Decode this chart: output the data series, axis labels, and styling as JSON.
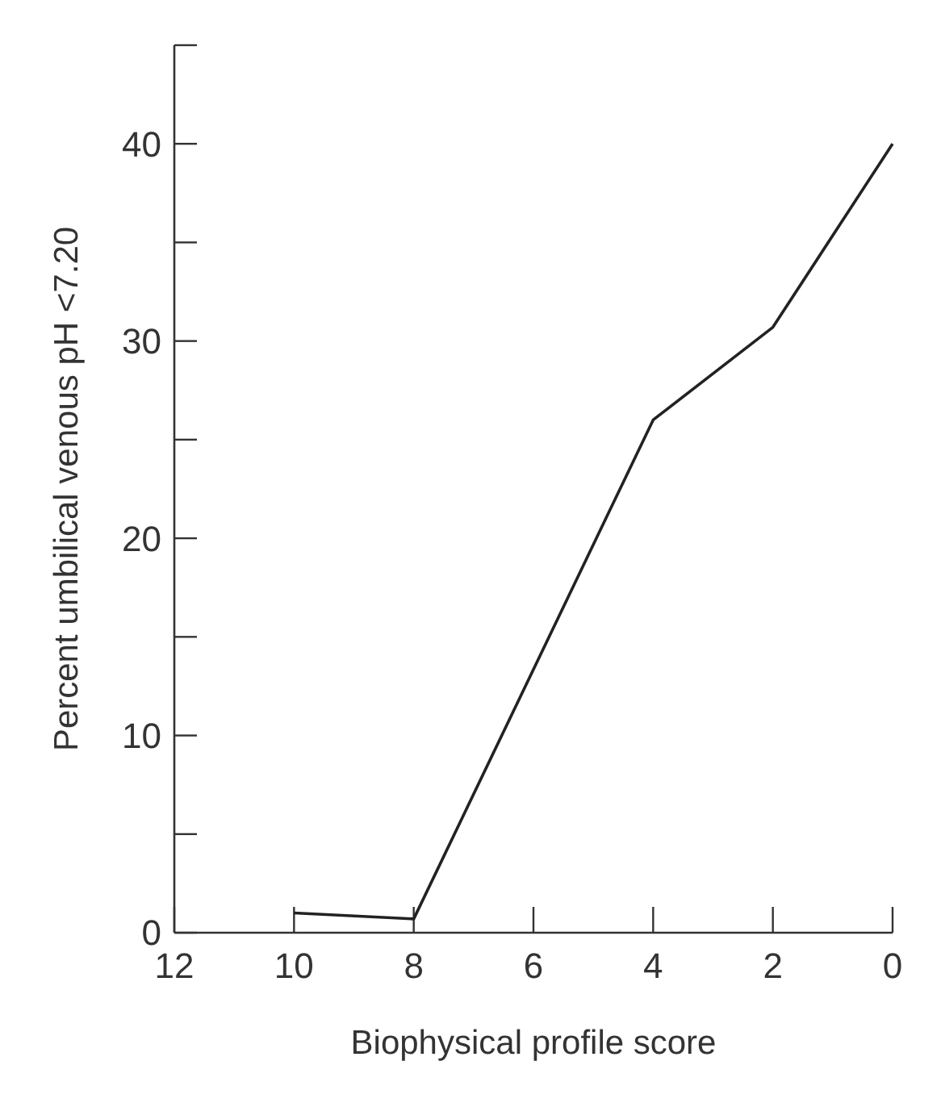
{
  "chart_data": {
    "type": "line",
    "xlabel": "Biophysical profile score",
    "ylabel": "Percent umbilical venous pH <7.20",
    "x": [
      10,
      8,
      4,
      2,
      0
    ],
    "series": [
      {
        "color": "#222222",
        "values": [
          1,
          0.7,
          26,
          30.7,
          40
        ]
      }
    ],
    "xlim": [
      12,
      0
    ],
    "xticks": [
      12,
      10,
      8,
      6,
      4,
      2,
      0
    ],
    "ylim": [
      0,
      45
    ],
    "yticks": [
      0,
      {
        "value": 5,
        "label": null
      },
      10,
      {
        "value": 15,
        "label": null
      },
      20,
      {
        "value": 25,
        "label": null
      },
      30,
      {
        "value": 35,
        "label": null
      },
      40,
      {
        "value": 45,
        "label": null
      }
    ],
    "grid": false,
    "line_style": "solid"
  }
}
